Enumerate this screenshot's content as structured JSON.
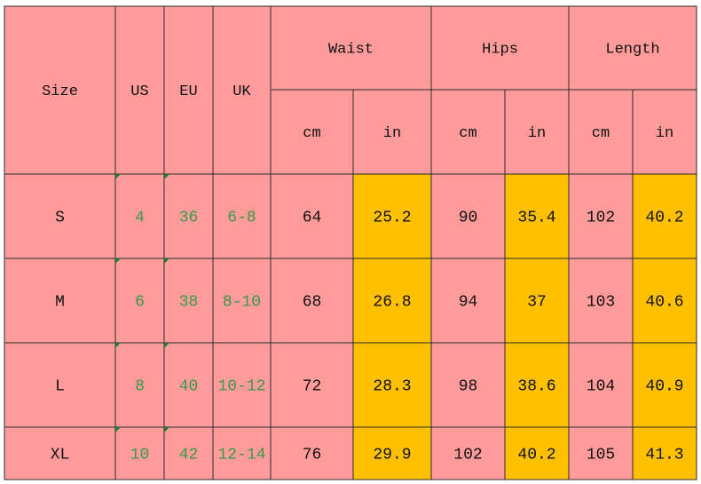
{
  "table": {
    "header": [
      "Size",
      "US",
      "EU",
      "UK"
    ],
    "groups": [
      "Waist",
      "Hips",
      "Length"
    ],
    "units": [
      "cm",
      "in",
      "cm",
      "in",
      "cm",
      "in"
    ],
    "rows": [
      [
        "S",
        4,
        36,
        "6-8",
        64,
        25.2,
        90,
        35.4,
        102,
        40.2
      ],
      [
        "M",
        6,
        38,
        "8-10",
        68,
        26.8,
        94,
        37,
        103,
        40.6
      ],
      [
        "L",
        8,
        40,
        "10-12",
        72,
        28.3,
        98,
        38.6,
        104,
        40.9
      ],
      [
        "XL",
        10,
        42,
        "12-14",
        76,
        29.9,
        102,
        40.2,
        105,
        41.3
      ]
    ]
  }
}
